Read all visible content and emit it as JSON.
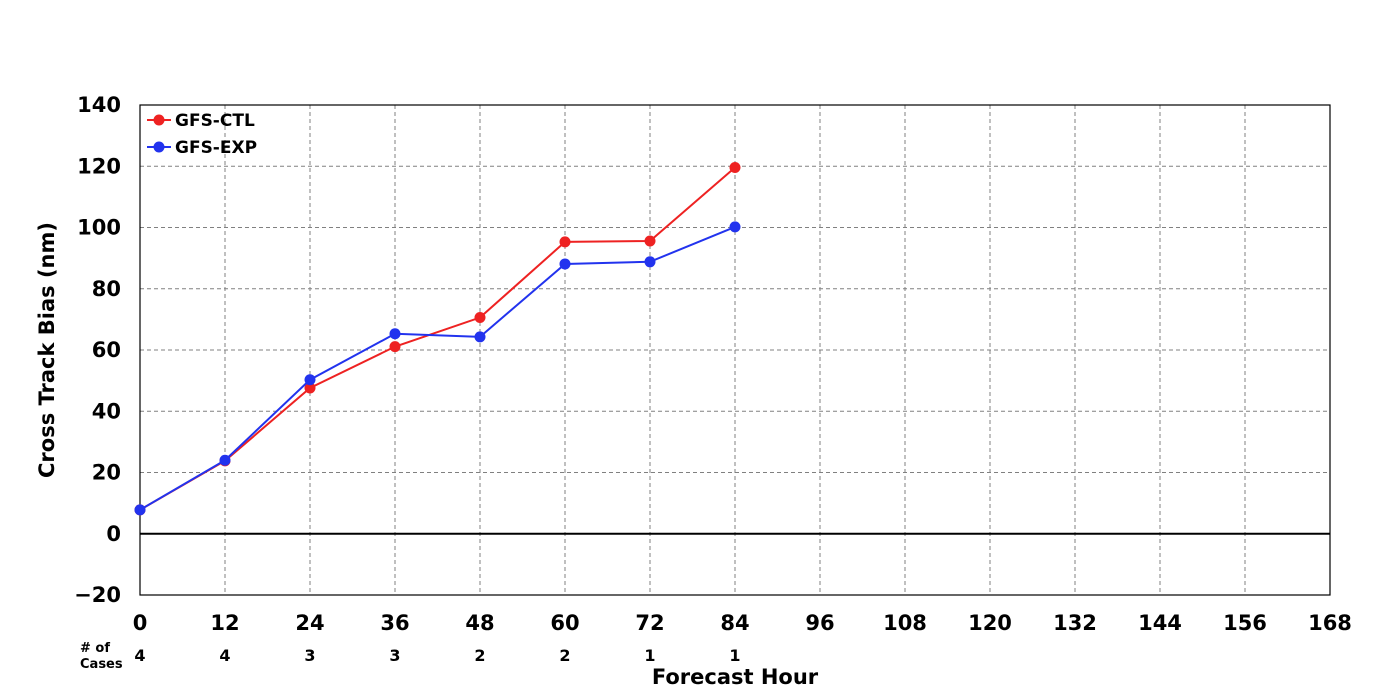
{
  "chart_data": {
    "type": "line",
    "xlabel": "Forecast Hour",
    "ylabel": "Cross Track Bias (nm)",
    "xlim": [
      0,
      168
    ],
    "ylim": [
      -20,
      140
    ],
    "x_ticks": [
      0,
      12,
      24,
      36,
      48,
      60,
      72,
      84,
      96,
      108,
      120,
      132,
      144,
      156,
      168
    ],
    "y_ticks": [
      -20,
      0,
      20,
      40,
      60,
      80,
      100,
      120,
      140
    ],
    "grid": true,
    "zero_line": true,
    "legend_position": "top-left",
    "series": [
      {
        "name": "GFS-CTL",
        "color": "#ee2222",
        "x": [
          0,
          12,
          24,
          36,
          48,
          60,
          72,
          84
        ],
        "values": [
          7.8,
          23.8,
          47.6,
          61.1,
          70.6,
          95.3,
          95.6,
          119.6
        ]
      },
      {
        "name": "GFS-EXP",
        "color": "#2233ee",
        "x": [
          0,
          12,
          24,
          36,
          48,
          60,
          72,
          84
        ],
        "values": [
          7.8,
          24.0,
          50.3,
          65.3,
          64.3,
          88.1,
          88.8,
          100.2
        ]
      }
    ],
    "cases": {
      "label_line1": "# of",
      "label_line2": "Cases",
      "x": [
        0,
        12,
        24,
        36,
        48,
        60,
        72,
        84
      ],
      "values": [
        "4",
        "4",
        "3",
        "3",
        "2",
        "2",
        "1",
        "1"
      ]
    }
  }
}
